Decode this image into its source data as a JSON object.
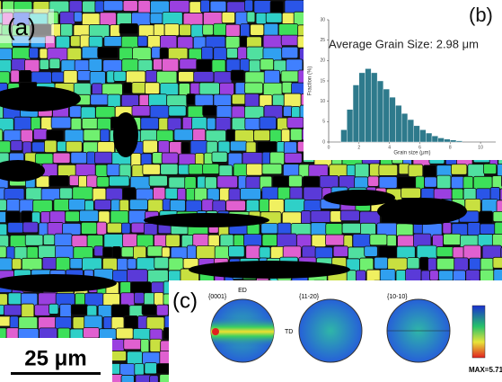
{
  "panel_a": {
    "label": "(a)",
    "scale_bar": "25 μm"
  },
  "panel_c": {
    "label": "(c)",
    "pole_figures": [
      "{0001}",
      "{11-20}",
      "{10-10}"
    ],
    "ed": "ED",
    "td": "TD",
    "max": "MAX=5.71"
  },
  "chart_data": {
    "type": "histogram",
    "label": "(b)",
    "annotation": "Average Grain Size: 2.98 μm",
    "x_label": "Grain size (μm)",
    "y_label": "Fraction (%)",
    "color": "#2e7a8c",
    "bins": [
      0.8,
      1.2,
      1.6,
      2.0,
      2.4,
      2.8,
      3.2,
      3.6,
      4.0,
      4.4,
      4.8,
      5.2,
      5.6,
      6.0,
      6.4,
      6.8,
      7.2,
      7.6,
      8.0,
      8.4,
      8.8
    ],
    "values": [
      3,
      8,
      14,
      17,
      18,
      17,
      15,
      13,
      11,
      9,
      7,
      5.5,
      4,
      3,
      2.2,
      1.5,
      1,
      0.7,
      0.5,
      0.3
    ],
    "xlim": [
      0,
      11
    ],
    "xticks": [
      0,
      2,
      4,
      6,
      8,
      10
    ],
    "ylim": [
      0,
      30
    ],
    "yticks": [
      0,
      5,
      10,
      15,
      20,
      25,
      30
    ]
  }
}
